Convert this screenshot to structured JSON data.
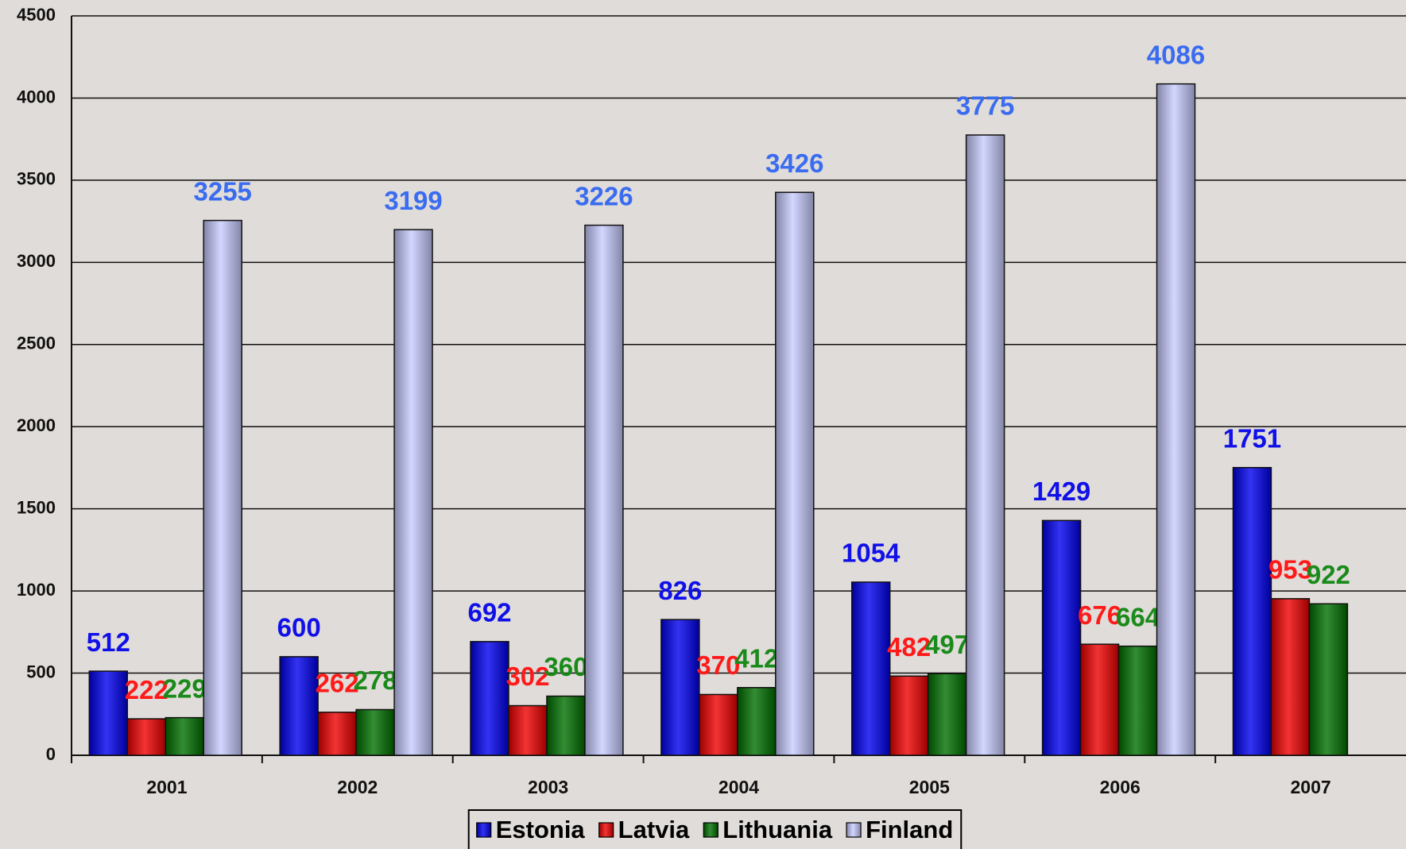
{
  "chart_data": {
    "type": "bar",
    "categories": [
      "2001",
      "2002",
      "2003",
      "2004",
      "2005",
      "2006",
      "2007"
    ],
    "series": [
      {
        "name": "Estonia",
        "color": "#0000f0",
        "label_color": "#1010e8",
        "values": [
          512,
          600,
          692,
          826,
          1054,
          1429,
          1751
        ]
      },
      {
        "name": "Latvia",
        "color": "#f00000",
        "label_color": "#ff1a1a",
        "values": [
          222,
          262,
          302,
          370,
          482,
          676,
          953
        ]
      },
      {
        "name": "Lithuania",
        "color": "#007000",
        "label_color": "#1a8a1a",
        "values": [
          229,
          278,
          360,
          412,
          497,
          664,
          922
        ]
      },
      {
        "name": "Finland",
        "color": "#c8ccff",
        "label_color": "#3a6cf0",
        "values": [
          3255,
          3199,
          3226,
          3426,
          3775,
          4086,
          null
        ]
      }
    ],
    "ylim": [
      0,
      4500
    ],
    "yticks": [
      0,
      500,
      1000,
      1500,
      2000,
      2500,
      3000,
      3500,
      4000,
      4500
    ],
    "grid": true,
    "legend": "bottom"
  }
}
